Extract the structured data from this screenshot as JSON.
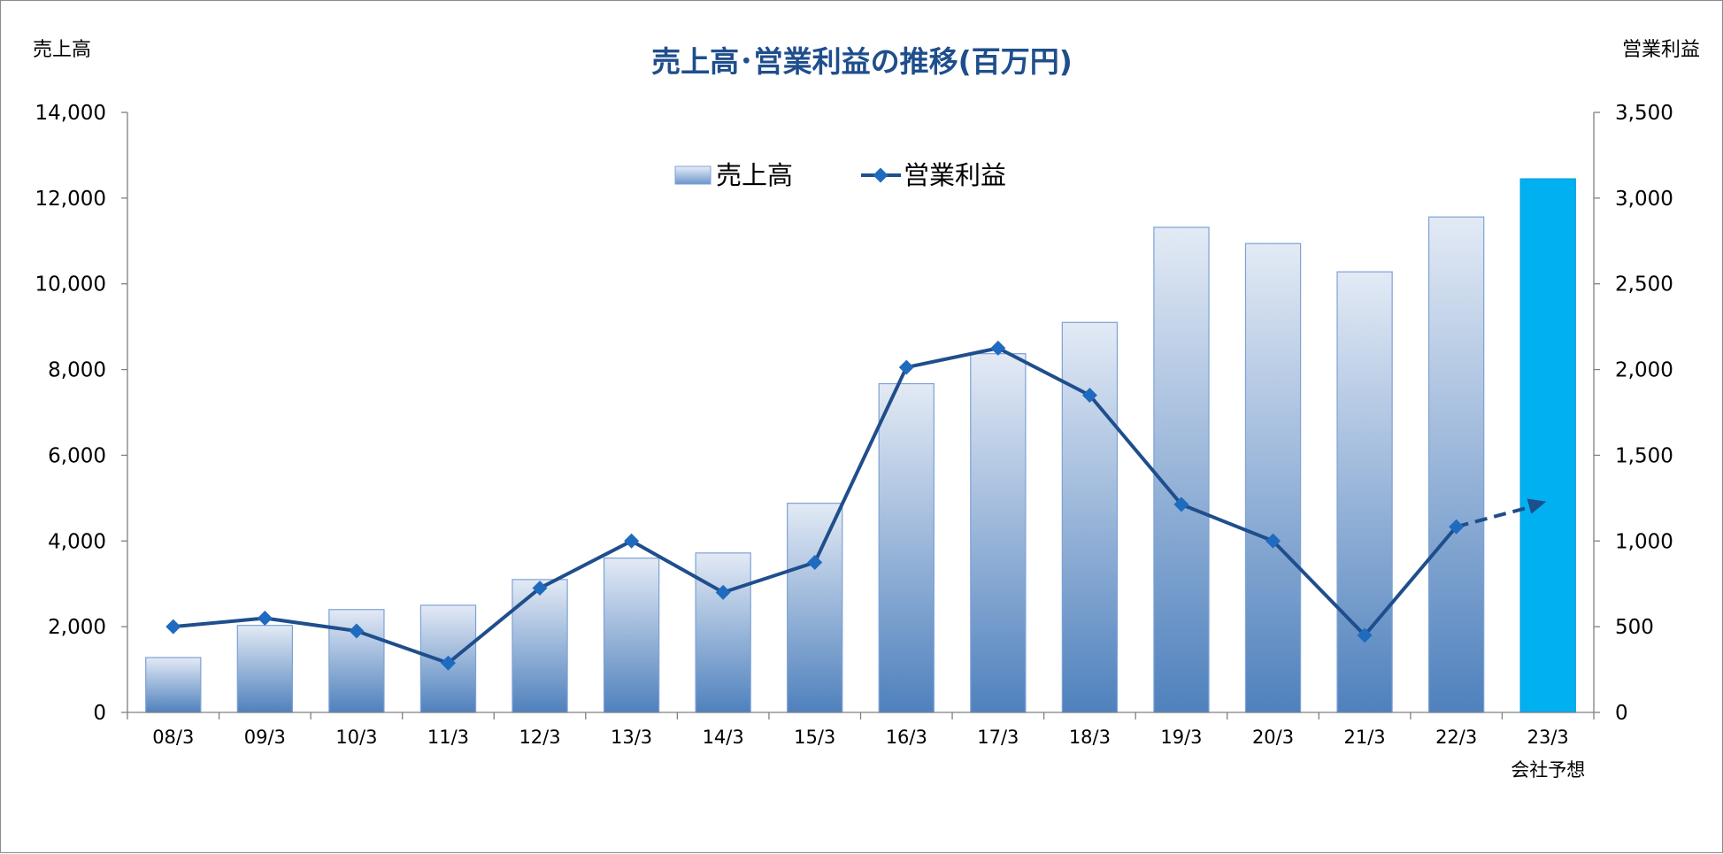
{
  "chart_data": {
    "type": "bar",
    "title": "売上高･営業利益の推移(百万円)",
    "y_left_label": "売上高",
    "y_right_label": "営業利益",
    "categories": [
      "08/3",
      "09/3",
      "10/3",
      "11/3",
      "12/3",
      "13/3",
      "14/3",
      "15/3",
      "16/3",
      "17/3",
      "18/3",
      "19/3",
      "20/3",
      "21/3",
      "22/3",
      "23/3"
    ],
    "forecast_label": "会社予想",
    "y_left_lim": [
      0,
      14000
    ],
    "y_left_ticks": [
      0,
      2000,
      4000,
      6000,
      8000,
      10000,
      12000,
      14000
    ],
    "y_left_tick_labels": [
      "0",
      "2,000",
      "4,000",
      "6,000",
      "8,000",
      "10,000",
      "12,000",
      "14,000"
    ],
    "y_right_lim": [
      0,
      3500
    ],
    "y_right_ticks": [
      0,
      500,
      1000,
      1500,
      2000,
      2500,
      3000,
      3500
    ],
    "y_right_tick_labels": [
      "0",
      "500",
      "1,000",
      "1,500",
      "2,000",
      "2,500",
      "3,000",
      "3,500"
    ],
    "grid": false,
    "legend_position": "top-center",
    "series": [
      {
        "name": "売上高",
        "type": "bar",
        "axis": "left",
        "values": [
          1280,
          2030,
          2400,
          2500,
          3100,
          3600,
          3720,
          4880,
          7670,
          8370,
          9100,
          11320,
          10940,
          10280,
          11560,
          12450
        ]
      },
      {
        "name": "営業利益",
        "type": "line",
        "axis": "right",
        "values": [
          500,
          550,
          475,
          288,
          725,
          1000,
          700,
          875,
          2013,
          2125,
          1850,
          1213,
          1000,
          450,
          1083,
          null
        ],
        "forecast_arrow_to": 1230
      }
    ],
    "colors": {
      "bar_top": "#e3eaf5",
      "bar_bottom": "#4f81bd",
      "bar_border": "#7ea1d6",
      "forecast_bar": "#00b0f0",
      "line": "#1f4e8c",
      "marker": "#1f6bbf"
    }
  }
}
